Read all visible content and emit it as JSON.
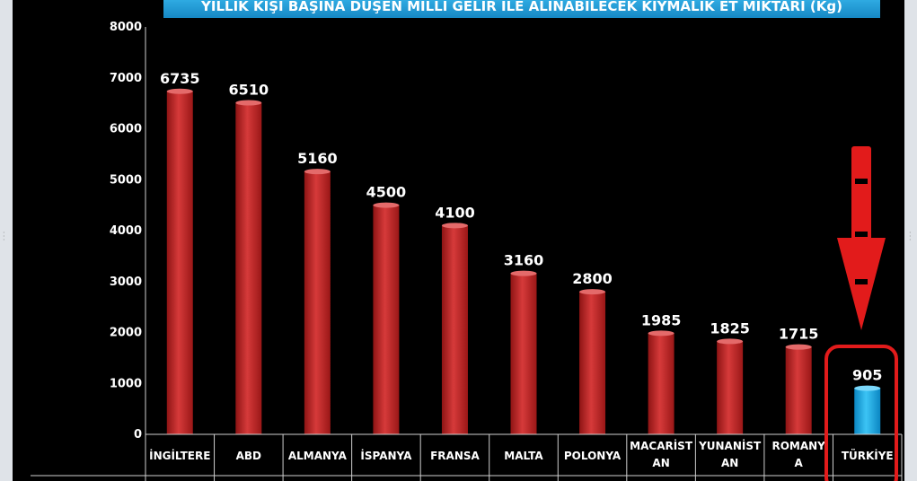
{
  "title": "YILLIK KİŞİ BAŞINA DÜŞEN MİLLİ GELİR İLE ALINABİLECEK KIYMALIK ET MİKTARI (Kg)",
  "colors": {
    "background": "#000000",
    "bar": "#c62828",
    "bar_highlight": "#1aa3e0",
    "title_band": "#1fa6e0",
    "title_text": "#ffffff",
    "annotation": "#e21b1b",
    "text": "#ffffff"
  },
  "chart_data": {
    "type": "bar",
    "title": "YILLIK KİŞİ BAŞINA DÜŞEN MİLLİ GELİR İLE ALINABİLECEK KIYMALIK ET MİKTARI (Kg)",
    "categories": [
      [
        "İNGİLTERE"
      ],
      [
        "ABD"
      ],
      [
        "ALMANYA"
      ],
      [
        "İSPANYA"
      ],
      [
        "FRANSA"
      ],
      [
        "MALTA"
      ],
      [
        "POLONYA"
      ],
      [
        "MACARİST",
        "AN"
      ],
      [
        "YUNANİST",
        "AN"
      ],
      [
        "ROMANY",
        "A"
      ],
      [
        "TÜRKİYE"
      ]
    ],
    "values": [
      6735,
      6510,
      5160,
      4500,
      4100,
      3160,
      2800,
      1985,
      1825,
      1715,
      905
    ],
    "data_labels": [
      "6735",
      "6510",
      "5160",
      "4500",
      "4100",
      "3160",
      "2800",
      "1985",
      "1825",
      "1715",
      "905"
    ],
    "highlight_category": "TÜRKİYE",
    "yticks": [
      0,
      1000,
      2000,
      3000,
      4000,
      5000,
      6000,
      7000,
      8000
    ],
    "ylim": [
      0,
      8000
    ],
    "grid": false,
    "legend": "none"
  }
}
